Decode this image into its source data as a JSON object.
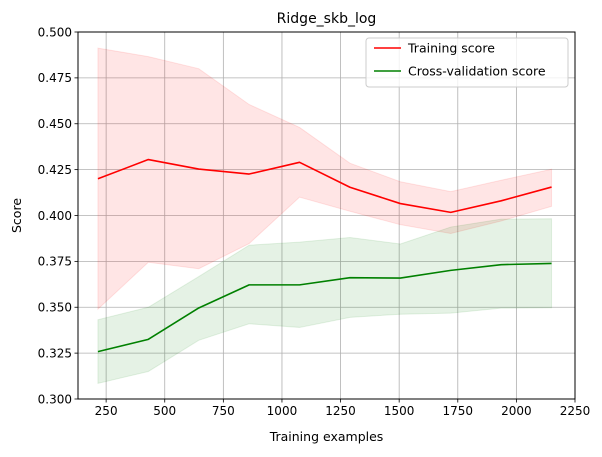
{
  "chart_data": {
    "type": "line",
    "title": "Ridge_skb_log",
    "xlabel": "Training examples",
    "ylabel": "Score",
    "xlim": [
      130,
      2250
    ],
    "ylim": [
      0.3,
      0.5
    ],
    "xticks": [
      250,
      500,
      750,
      1000,
      1250,
      1500,
      1750,
      2000,
      2250
    ],
    "yticks": [
      0.3,
      0.325,
      0.35,
      0.375,
      0.4,
      0.425,
      0.45,
      0.475,
      0.5
    ],
    "xtick_labels": [
      "250",
      "500",
      "750",
      "1000",
      "1250",
      "1500",
      "1750",
      "2000",
      "2250"
    ],
    "ytick_labels": [
      "0.300",
      "0.325",
      "0.350",
      "0.375",
      "0.400",
      "0.425",
      "0.450",
      "0.475",
      "0.500"
    ],
    "grid": true,
    "legend_position": "upper-right",
    "x": [
      215,
      430,
      645,
      860,
      1075,
      1290,
      1505,
      1720,
      1935,
      2150
    ],
    "series": [
      {
        "name": "Training score",
        "color": "#ff0000",
        "band_color": "#ff0000",
        "values": [
          0.42,
          0.4305,
          0.4253,
          0.4226,
          0.429,
          0.4154,
          0.4065,
          0.4017,
          0.408,
          0.4155
        ],
        "band_upper": [
          0.4912,
          0.4866,
          0.48,
          0.4605,
          0.448,
          0.4285,
          0.4184,
          0.413,
          0.4192,
          0.4252
        ],
        "band_lower": [
          0.349,
          0.3745,
          0.371,
          0.3847,
          0.41,
          0.4023,
          0.395,
          0.3902,
          0.397,
          0.405
        ]
      },
      {
        "name": "Cross-validation score",
        "color": "#008000",
        "band_color": "#008000",
        "values": [
          0.3258,
          0.3325,
          0.3496,
          0.3622,
          0.3622,
          0.3661,
          0.3659,
          0.3701,
          0.3732,
          0.3739
        ],
        "band_upper": [
          0.3432,
          0.35,
          0.3667,
          0.3838,
          0.3855,
          0.388,
          0.3845,
          0.3937,
          0.398,
          0.3982
        ],
        "band_lower": [
          0.3085,
          0.315,
          0.332,
          0.341,
          0.339,
          0.3445,
          0.3462,
          0.3468,
          0.3495,
          0.3497
        ]
      }
    ]
  }
}
